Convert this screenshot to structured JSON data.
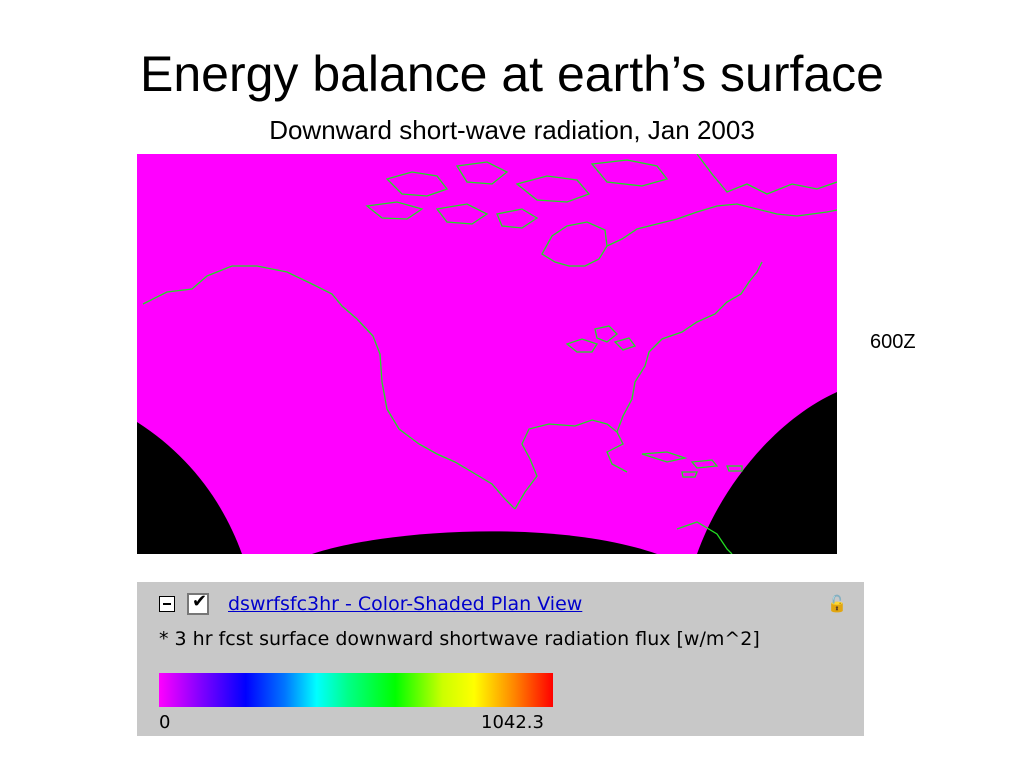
{
  "title": "Energy balance at earth’s surface",
  "subtitle": "Downward short-wave radiation, Jan 2003",
  "time_label": "600Z",
  "legend": {
    "layer_name": "dswrfsfc3hr - Color-Shaded Plan View",
    "description": "* 3 hr fcst surface downward shortwave radiation flux [w/m^2]",
    "min": "0",
    "max": "1042.3"
  },
  "colors": {
    "map_fill": "#ff00ff",
    "coastline": "#22dd22",
    "offmap": "#000000"
  }
}
